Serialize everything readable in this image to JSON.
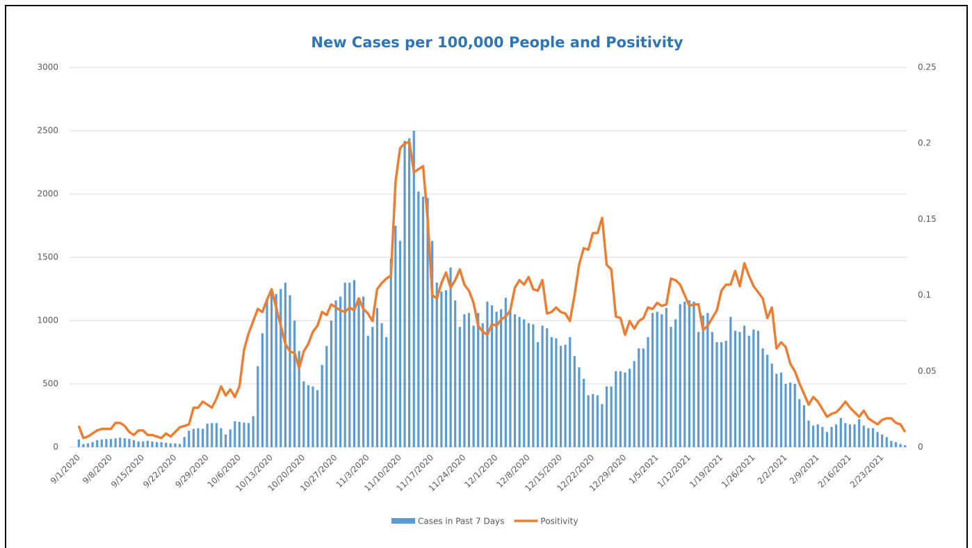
{
  "chart_data": {
    "type": "bar_line",
    "title": "New Cases per 100,000 People and Positivity",
    "categories": [
      "9/1/2020",
      null,
      null,
      null,
      null,
      null,
      null,
      "9/8/2020",
      null,
      null,
      null,
      null,
      null,
      null,
      "9/15/2020",
      null,
      null,
      null,
      null,
      null,
      null,
      "9/22/2020",
      null,
      null,
      null,
      null,
      null,
      null,
      "9/29/2020",
      null,
      null,
      null,
      null,
      null,
      null,
      "10/6/2020",
      null,
      null,
      null,
      null,
      null,
      null,
      "10/13/2020",
      null,
      null,
      null,
      null,
      null,
      null,
      "10/20/2020",
      null,
      null,
      null,
      null,
      null,
      null,
      "10/27/2020",
      null,
      null,
      null,
      null,
      null,
      null,
      "11/3/2020",
      null,
      null,
      null,
      null,
      null,
      null,
      "11/10/2020",
      null,
      null,
      null,
      null,
      null,
      null,
      "11/17/2020",
      null,
      null,
      null,
      null,
      null,
      null,
      "11/24/2020",
      null,
      null,
      null,
      null,
      null,
      null,
      "12/1/2020",
      null,
      null,
      null,
      null,
      null,
      null,
      "12/8/2020",
      null,
      null,
      null,
      null,
      null,
      null,
      "12/15/2020",
      null,
      null,
      null,
      null,
      null,
      null,
      "12/22/2020",
      null,
      null,
      null,
      null,
      null,
      null,
      "12/29/2020",
      null,
      null,
      null,
      null,
      null,
      null,
      "1/5/2021",
      null,
      null,
      null,
      null,
      null,
      null,
      "1/12/2021",
      null,
      null,
      null,
      null,
      null,
      null,
      "1/19/2021",
      null,
      null,
      null,
      null,
      null,
      null,
      "1/26/2021",
      null,
      null,
      null,
      null,
      null,
      null,
      "2/2/2021",
      null,
      null,
      null,
      null,
      null,
      null,
      "2/9/2021",
      null,
      null,
      null,
      null,
      null,
      null,
      "2/16/2021",
      null,
      null,
      null,
      null,
      null,
      null,
      "2/23/2021",
      null,
      null,
      null,
      null,
      null
    ],
    "series": [
      {
        "name": "Cases in Past 7 Days",
        "type": "bar",
        "color": "#5b9bd5",
        "values": [
          60,
          25,
          30,
          40,
          55,
          60,
          65,
          65,
          70,
          75,
          70,
          65,
          55,
          45,
          45,
          50,
          45,
          40,
          40,
          35,
          30,
          30,
          25,
          80,
          130,
          145,
          150,
          145,
          185,
          190,
          190,
          150,
          100,
          140,
          205,
          200,
          195,
          190,
          245,
          640,
          900,
          1160,
          1220,
          1210,
          1250,
          1300,
          1200,
          1000,
          760,
          520,
          490,
          480,
          450,
          650,
          800,
          1000,
          1160,
          1190,
          1300,
          1300,
          1320,
          1180,
          1190,
          880,
          950,
          1100,
          980,
          870,
          1490,
          1750,
          1630,
          2420,
          2440,
          2500,
          2020,
          1980,
          1970,
          1630,
          1300,
          1230,
          1240,
          1420,
          1160,
          950,
          1050,
          1060,
          960,
          1060,
          980,
          1150,
          1120,
          1070,
          1090,
          1180,
          1080,
          1050,
          1030,
          1010,
          980,
          970,
          830,
          960,
          940,
          870,
          860,
          800,
          810,
          870,
          720,
          630,
          540,
          410,
          420,
          410,
          340,
          480,
          480,
          600,
          600,
          590,
          620,
          680,
          780,
          780,
          870,
          1060,
          1070,
          1050,
          1100,
          950,
          1010,
          1130,
          1150,
          1160,
          1150,
          910,
          1040,
          1060,
          910,
          830,
          830,
          840,
          1030,
          920,
          910,
          960,
          880,
          930,
          920,
          780,
          730,
          660,
          580,
          590,
          500,
          510,
          500,
          380,
          330,
          210,
          170,
          180,
          160,
          120,
          160,
          180,
          230,
          190,
          180,
          180,
          220,
          170,
          150,
          150,
          120,
          100,
          80,
          50,
          40,
          25,
          15
        ]
      },
      {
        "name": "Positivity",
        "type": "line",
        "axis": "y2",
        "color": "#ed7d31",
        "values": [
          0.014,
          0.006,
          0.007,
          0.009,
          0.011,
          0.012,
          0.012,
          0.012,
          0.016,
          0.016,
          0.014,
          0.01,
          0.008,
          0.011,
          0.011,
          0.008,
          0.008,
          0.007,
          0.006,
          0.009,
          0.007,
          0.01,
          0.013,
          0.014,
          0.015,
          0.026,
          0.026,
          0.03,
          0.028,
          0.026,
          0.032,
          0.04,
          0.034,
          0.038,
          0.033,
          0.04,
          0.064,
          0.075,
          0.083,
          0.091,
          0.089,
          0.097,
          0.104,
          0.092,
          0.08,
          0.068,
          0.063,
          0.062,
          0.052,
          0.063,
          0.068,
          0.076,
          0.08,
          0.089,
          0.087,
          0.094,
          0.092,
          0.09,
          0.089,
          0.092,
          0.09,
          0.098,
          0.091,
          0.088,
          0.083,
          0.104,
          0.108,
          0.111,
          0.113,
          0.175,
          0.197,
          0.2,
          0.201,
          0.181,
          0.183,
          0.185,
          0.15,
          0.1,
          0.098,
          0.108,
          0.115,
          0.105,
          0.11,
          0.117,
          0.107,
          0.103,
          0.095,
          0.08,
          0.076,
          0.074,
          0.081,
          0.08,
          0.084,
          0.086,
          0.09,
          0.105,
          0.11,
          0.107,
          0.112,
          0.104,
          0.103,
          0.11,
          0.088,
          0.089,
          0.092,
          0.089,
          0.088,
          0.083,
          0.1,
          0.12,
          0.131,
          0.13,
          0.141,
          0.141,
          0.151,
          0.12,
          0.117,
          0.086,
          0.085,
          0.074,
          0.083,
          0.078,
          0.083,
          0.085,
          0.092,
          0.091,
          0.095,
          0.093,
          0.094,
          0.111,
          0.11,
          0.107,
          0.1,
          0.093,
          0.094,
          0.094,
          0.077,
          0.08,
          0.085,
          0.09,
          0.103,
          0.107,
          0.107,
          0.116,
          0.106,
          0.121,
          0.113,
          0.106,
          0.102,
          0.098,
          0.085,
          0.092,
          0.065,
          0.069,
          0.066,
          0.055,
          0.05,
          0.042,
          0.035,
          0.028,
          0.033,
          0.03,
          0.025,
          0.02,
          0.022,
          0.023,
          0.026,
          0.03,
          0.026,
          0.023,
          0.02,
          0.024,
          0.019,
          0.017,
          0.015,
          0.018,
          0.019,
          0.019,
          0.016,
          0.015,
          0.01
        ]
      }
    ],
    "ylim": [
      0,
      3000
    ],
    "yticks": [
      0,
      500,
      1000,
      1500,
      2000,
      2500,
      3000
    ],
    "y2lim": [
      0,
      0.25
    ],
    "y2ticks": [
      0,
      0.05,
      0.1,
      0.15,
      0.2,
      0.25
    ],
    "grid": true
  }
}
